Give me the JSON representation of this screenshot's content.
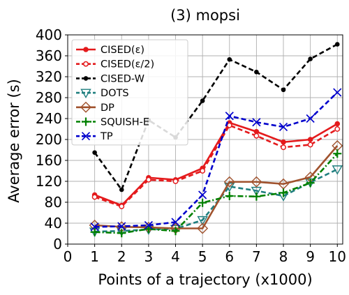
{
  "chart_data": {
    "type": "line",
    "title": "(3) mopsi",
    "xlabel": "Points of a trajectory (x1000)",
    "ylabel": "Average error (s)",
    "x": [
      1,
      2,
      3,
      4,
      5,
      6,
      7,
      8,
      9,
      10
    ],
    "xlim": [
      0,
      10.2
    ],
    "ylim": [
      0,
      400
    ],
    "xticks": [
      0,
      1,
      2,
      3,
      4,
      5,
      6,
      7,
      8,
      9,
      10
    ],
    "yticks": [
      0,
      40,
      80,
      120,
      160,
      200,
      240,
      280,
      320,
      360,
      400
    ],
    "grid": true,
    "legend_position": "top-left",
    "series": [
      {
        "name": "CISED(ε)",
        "color": "#e41a1c",
        "dash": "solid",
        "marker": "circle-filled",
        "values": [
          94,
          74,
          127,
          123,
          145,
          232,
          215,
          195,
          200,
          230
        ]
      },
      {
        "name": "CISED(ε/2)",
        "color": "#e41a1c",
        "dash": "dashed",
        "marker": "circle-open",
        "values": [
          90,
          72,
          123,
          120,
          140,
          227,
          207,
          185,
          190,
          220
        ]
      },
      {
        "name": "CISED-W",
        "color": "#000000",
        "dash": "dashed",
        "marker": "circle-filled-small",
        "values": [
          175,
          104,
          237,
          204,
          274,
          353,
          329,
          295,
          354,
          382
        ]
      },
      {
        "name": "DOTS",
        "color": "#1f7f7f",
        "dash": "dashed",
        "marker": "triangle-down",
        "values": [
          24,
          25,
          28,
          29,
          46,
          110,
          102,
          92,
          118,
          143
        ]
      },
      {
        "name": "DP",
        "color": "#a0522d",
        "dash": "solid",
        "marker": "diamond",
        "values": [
          36,
          33,
          32,
          30,
          30,
          119,
          119,
          115,
          128,
          188
        ]
      },
      {
        "name": "SQUISH-E",
        "color": "#008000",
        "dash": "dashdot",
        "marker": "plus",
        "values": [
          23,
          21,
          29,
          25,
          79,
          92,
          91,
          98,
          117,
          173
        ]
      },
      {
        "name": "TP",
        "color": "#0000cc",
        "dash": "dashed",
        "marker": "x",
        "values": [
          33,
          34,
          36,
          42,
          94,
          245,
          233,
          224,
          240,
          290
        ]
      }
    ]
  }
}
